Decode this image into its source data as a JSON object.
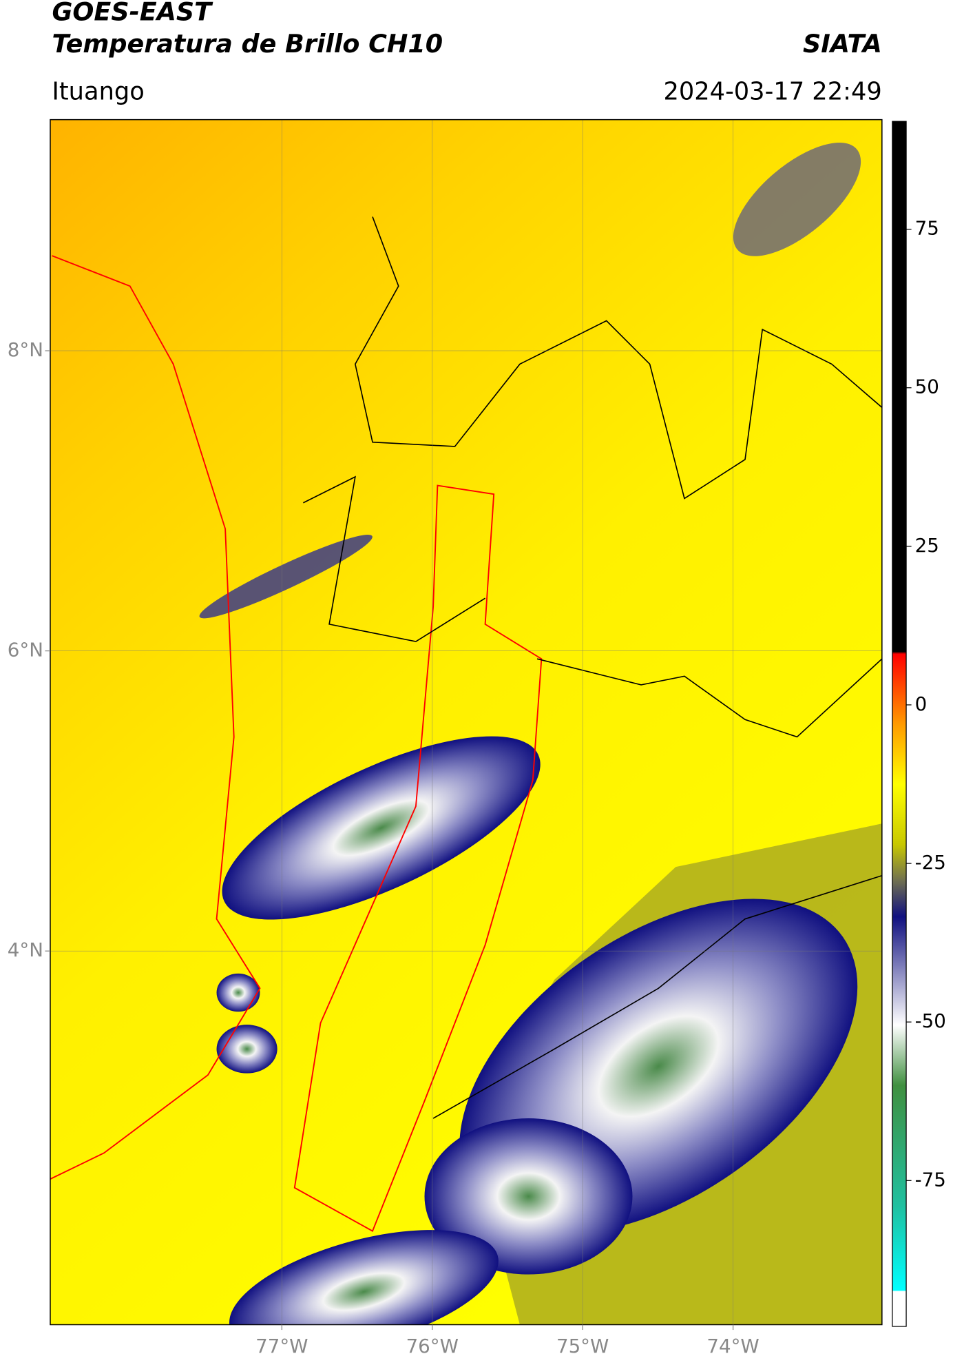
{
  "header": {
    "title": "GOES-EAST",
    "subtitle": "Temperatura de Brillo CH10",
    "source": "SIATA",
    "location": "Ituango",
    "datetime": "2024-03-17 22:49"
  },
  "map": {
    "xlim": [
      -78.54,
      -73.01
    ],
    "ylim": [
      1.51,
      9.54
    ],
    "xticks": [
      {
        "value": -77,
        "label": "77°W"
      },
      {
        "value": -76,
        "label": "76°W"
      },
      {
        "value": -75,
        "label": "75°W"
      },
      {
        "value": -74,
        "label": "74°W"
      }
    ],
    "yticks": [
      {
        "value": 8,
        "label": "8°N"
      },
      {
        "value": 6,
        "label": "6°N"
      },
      {
        "value": 4,
        "label": "4°N"
      }
    ]
  },
  "colorbar": {
    "lim": [
      -98,
      92
    ],
    "ticks": [
      75,
      50,
      25,
      0,
      -25,
      -50,
      -75
    ]
  }
}
